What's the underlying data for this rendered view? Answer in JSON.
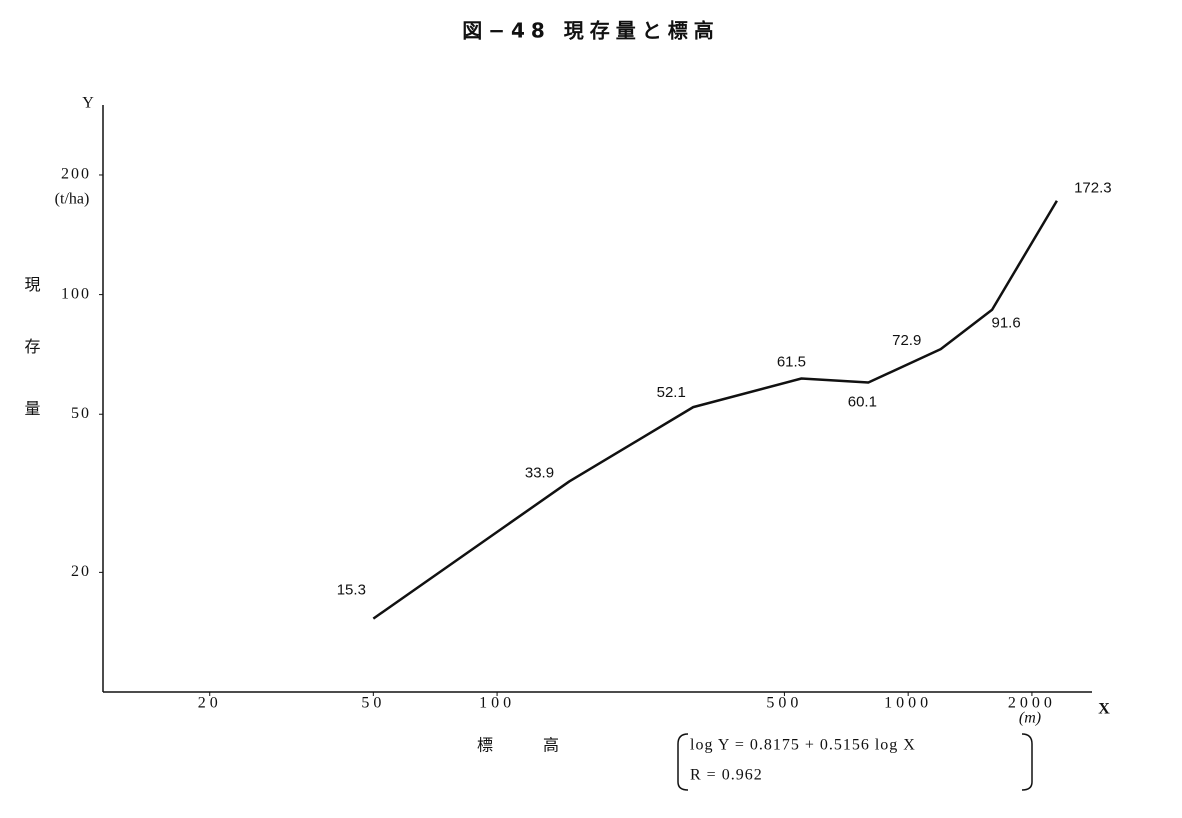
{
  "chart_data": {
    "type": "line",
    "title": "図−48 現存量と標高",
    "xlabel": "標高",
    "ylabel": "現存量",
    "x_symbol": "X",
    "y_symbol": "Y",
    "x_unit": "(m)",
    "y_unit": "(t/ha)",
    "equation": [
      "log Y = 0.8175 + 0.5156 log X",
      "R = 0.962"
    ],
    "xscale": "log",
    "yscale": "log",
    "x": [
      50,
      150,
      300,
      550,
      800,
      1200,
      1600,
      2300
    ],
    "series": [
      {
        "color": "#111111",
        "values": [
          15.3,
          33.9,
          52.1,
          61.5,
          60.1,
          72.9,
          91.6,
          172.3
        ]
      }
    ],
    "xlim": [
      11,
      2800
    ],
    "ylim": [
      10,
      300
    ],
    "xticks": [
      20,
      50,
      100,
      500,
      1000,
      2000
    ],
    "yticks": [
      20,
      50,
      100,
      200
    ],
    "grid": false
  }
}
